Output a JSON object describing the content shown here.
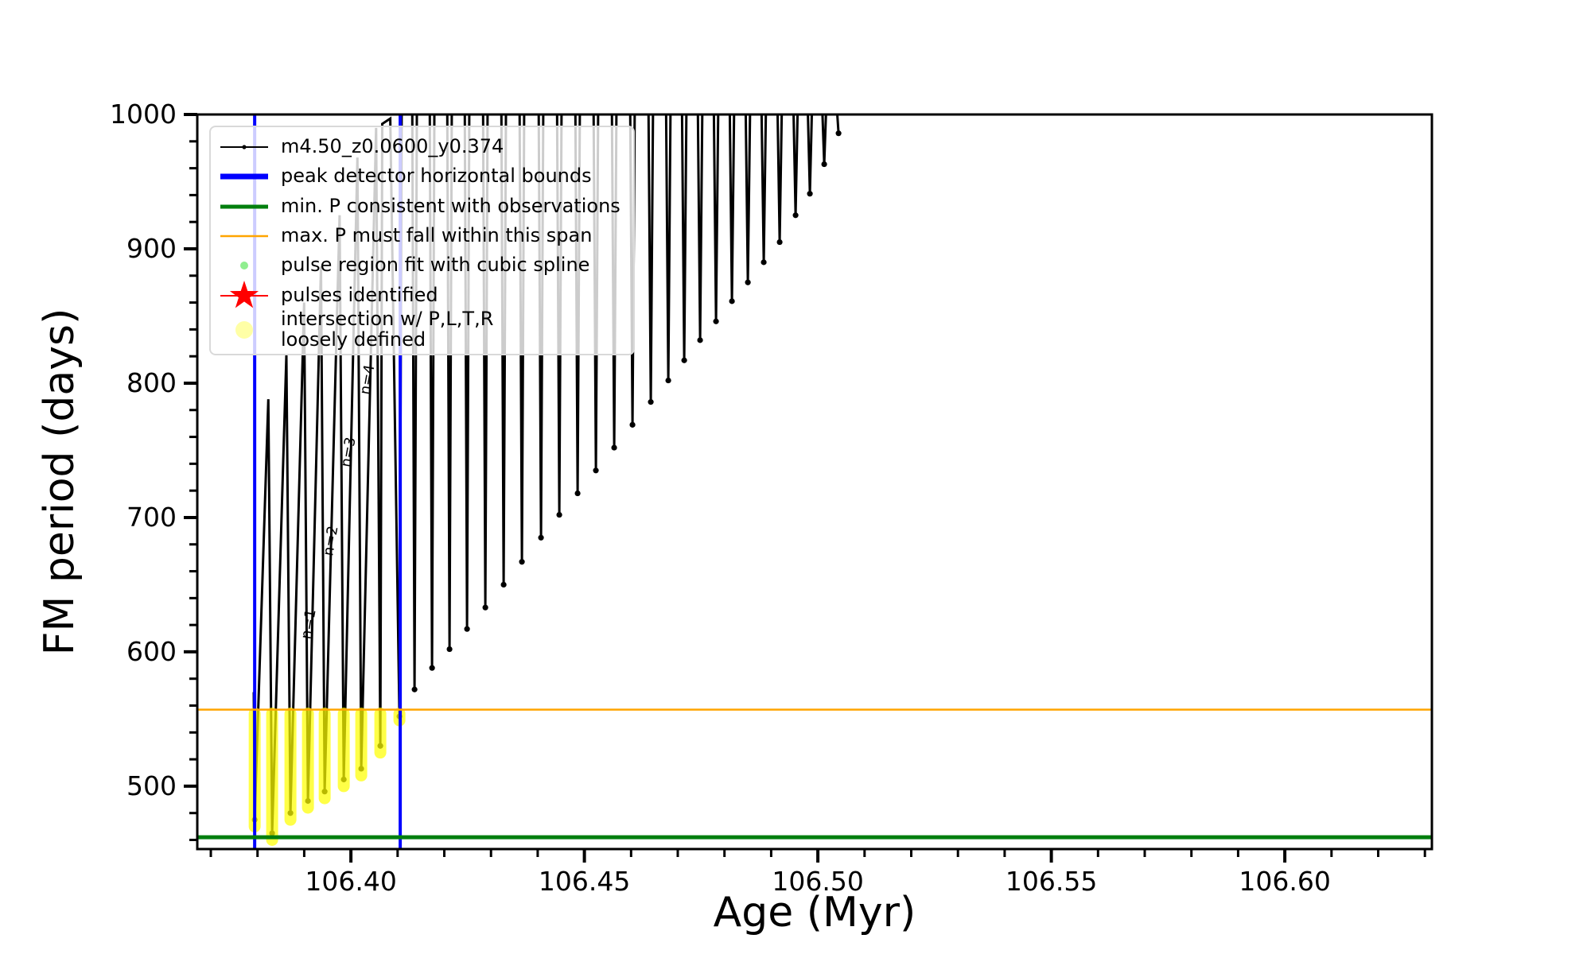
{
  "axes": {
    "xlabel": "Age (Myr)",
    "ylabel": "FM period (days)"
  },
  "legend": {
    "items": [
      {
        "label": "m4.50_z0.0600_y0.374",
        "sample": "line-dot",
        "color": "#000000",
        "lw": 2
      },
      {
        "label": "peak detector horizontal bounds",
        "sample": "line",
        "color": "#0000ff",
        "lw": 7
      },
      {
        "label": "min. P consistent with observations",
        "sample": "line",
        "color": "#007f0e",
        "lw": 5
      },
      {
        "label": "max. P must fall within this span",
        "sample": "line",
        "color": "#ffa500",
        "lw": 2.5
      },
      {
        "label": "pulse region fit with cubic spline",
        "sample": "dot",
        "color": "#90ee90",
        "r": 5
      },
      {
        "label": "pulses identified",
        "sample": "star-line",
        "color": "#ff0000",
        "lw": 2
      },
      {
        "label": "intersection w/ P,L,T,R\nloosely defined",
        "sample": "dot-big",
        "color": "#ffff00",
        "r": 11,
        "opacity": 0.35
      }
    ]
  },
  "chart_data": {
    "type": "line",
    "title": "",
    "xlabel": "Age (Myr)",
    "ylabel": "FM period (days)",
    "xlim": [
      106.3671,
      106.6315
    ],
    "ylim": [
      453.2,
      1000
    ],
    "grid": false,
    "legend_position": "upper left",
    "xticks": [
      {
        "v": 106.4,
        "label": "106.40"
      },
      {
        "v": 106.45,
        "label": "106.45"
      },
      {
        "v": 106.5,
        "label": "106.50"
      },
      {
        "v": 106.55,
        "label": "106.55"
      },
      {
        "v": 106.6,
        "label": "106.60"
      }
    ],
    "xminor_step": 0.01,
    "yticks": [
      {
        "v": 500,
        "label": "500"
      },
      {
        "v": 600,
        "label": "600"
      },
      {
        "v": 700,
        "label": "700"
      },
      {
        "v": 800,
        "label": "800"
      },
      {
        "v": 900,
        "label": "900"
      },
      {
        "v": 1000,
        "label": "1000"
      }
    ],
    "yminor_step": 20,
    "series_name": "m4.50_z0.0600_y0.374",
    "track_color": "#000000",
    "track_start": [
      106.37919,
      570
    ],
    "pulse_minima": [
      [
        106.37939,
        475
      ],
      [
        106.38313,
        465
      ],
      [
        106.38705,
        480
      ],
      [
        106.3908,
        489
      ],
      [
        106.39438,
        496
      ],
      [
        106.39847,
        505
      ],
      [
        106.40221,
        513
      ],
      [
        106.4063,
        530
      ],
      [
        106.41039,
        552
      ],
      [
        106.41363,
        572
      ],
      [
        106.41738,
        588
      ],
      [
        106.42112,
        602
      ],
      [
        106.42487,
        617
      ],
      [
        106.42879,
        633
      ],
      [
        106.43271,
        650
      ],
      [
        106.43662,
        667
      ],
      [
        106.44071,
        685
      ],
      [
        106.44463,
        702
      ],
      [
        106.44855,
        718
      ],
      [
        106.45246,
        735
      ],
      [
        106.45638,
        752
      ],
      [
        106.4603,
        769
      ],
      [
        106.46422,
        786
      ],
      [
        106.46797,
        802
      ],
      [
        106.47138,
        817
      ],
      [
        106.47478,
        832
      ],
      [
        106.47819,
        846
      ],
      [
        106.4816,
        861
      ],
      [
        106.48501,
        875
      ],
      [
        106.48841,
        890
      ],
      [
        106.49182,
        905
      ],
      [
        106.49523,
        925
      ],
      [
        106.49829,
        941
      ],
      [
        106.50136,
        963
      ],
      [
        106.50443,
        986
      ]
    ],
    "pulse_peaks": [
      788,
      821,
      860,
      887,
      925,
      968,
      990,
      997,
      1012,
      1012,
      1012,
      1012,
      1012,
      1012,
      1012,
      1012,
      1012,
      1012,
      1012,
      1012,
      1012,
      1012,
      1012,
      1012,
      1012,
      1012,
      1012,
      1012,
      1012,
      1012,
      1012,
      1012,
      1012,
      1012
    ],
    "vlines": {
      "label": "peak detector horizontal bounds",
      "color": "#0000ff",
      "x": [
        106.37939,
        106.41056
      ],
      "lw": 4
    },
    "hlines": [
      {
        "label": "min. P consistent with observations",
        "color": "#007f0e",
        "y": 462,
        "lw": 5
      },
      {
        "label": "max. P must fall within this span",
        "color": "#ffa500",
        "y": 557,
        "lw": 2.5
      }
    ],
    "intersections": {
      "label": "intersection w/ P,L,T,R loosely defined",
      "color": "#ffff00",
      "opacity": 0.72,
      "width": 15,
      "top": 554,
      "strands": [
        [
          106.37939,
          470
        ],
        [
          106.38313,
          460
        ],
        [
          106.38705,
          475
        ],
        [
          106.3908,
          484
        ],
        [
          106.39438,
          491
        ],
        [
          106.39847,
          500
        ],
        [
          106.40221,
          508
        ],
        [
          106.4063,
          525
        ],
        [
          106.41039,
          549
        ]
      ]
    },
    "annotations": [
      {
        "text": "n=1",
        "a": 106.39131,
        "p": 609,
        "rot": -80
      },
      {
        "text": "n=2",
        "a": 106.39608,
        "p": 671,
        "rot": -80
      },
      {
        "text": "n=3",
        "a": 106.39983,
        "p": 737,
        "rot": -80
      },
      {
        "text": "n=4",
        "a": 106.40392,
        "p": 791,
        "rot": -80
      }
    ]
  }
}
